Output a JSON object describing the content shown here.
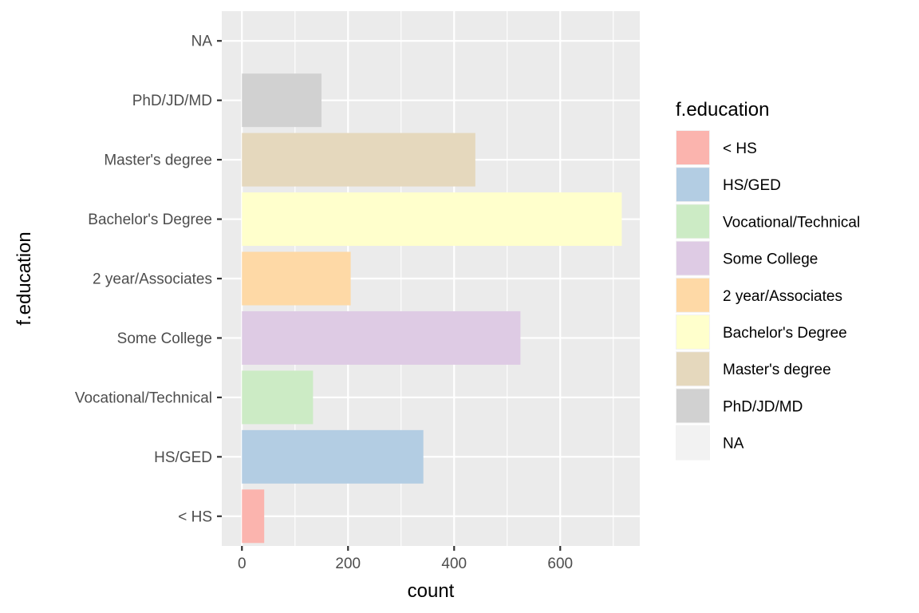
{
  "chart_data": {
    "type": "bar",
    "orientation": "horizontal",
    "title": "",
    "xlabel": "count",
    "ylabel": "f.education",
    "xlim": [
      -38,
      750
    ],
    "x_ticks": [
      0,
      200,
      400,
      600
    ],
    "x_tick_labels": [
      "0",
      "200",
      "400",
      "600"
    ],
    "grid": true,
    "categories": [
      "< HS",
      "HS/GED",
      "Vocational/Technical",
      "Some College",
      "2 year/Associates",
      "Bachelor's Degree",
      "Master's degree",
      "PhD/JD/MD",
      "NA"
    ],
    "values": [
      42,
      342,
      134,
      525,
      205,
      716,
      440,
      150,
      0
    ],
    "colors": [
      "#FBB4AE",
      "#B3CDE3",
      "#CCEBC5",
      "#DECBE4",
      "#FED9A6",
      "#FFFFCC",
      "#E5D8BD",
      "#D1D1D1",
      "#F2F2F2"
    ],
    "legend": {
      "title": "f.education",
      "position": "right",
      "entries": [
        "< HS",
        "HS/GED",
        "Vocational/Technical",
        "Some College",
        "2 year/Associates",
        "Bachelor's Degree",
        "Master's degree",
        "PhD/JD/MD",
        "NA"
      ]
    }
  }
}
